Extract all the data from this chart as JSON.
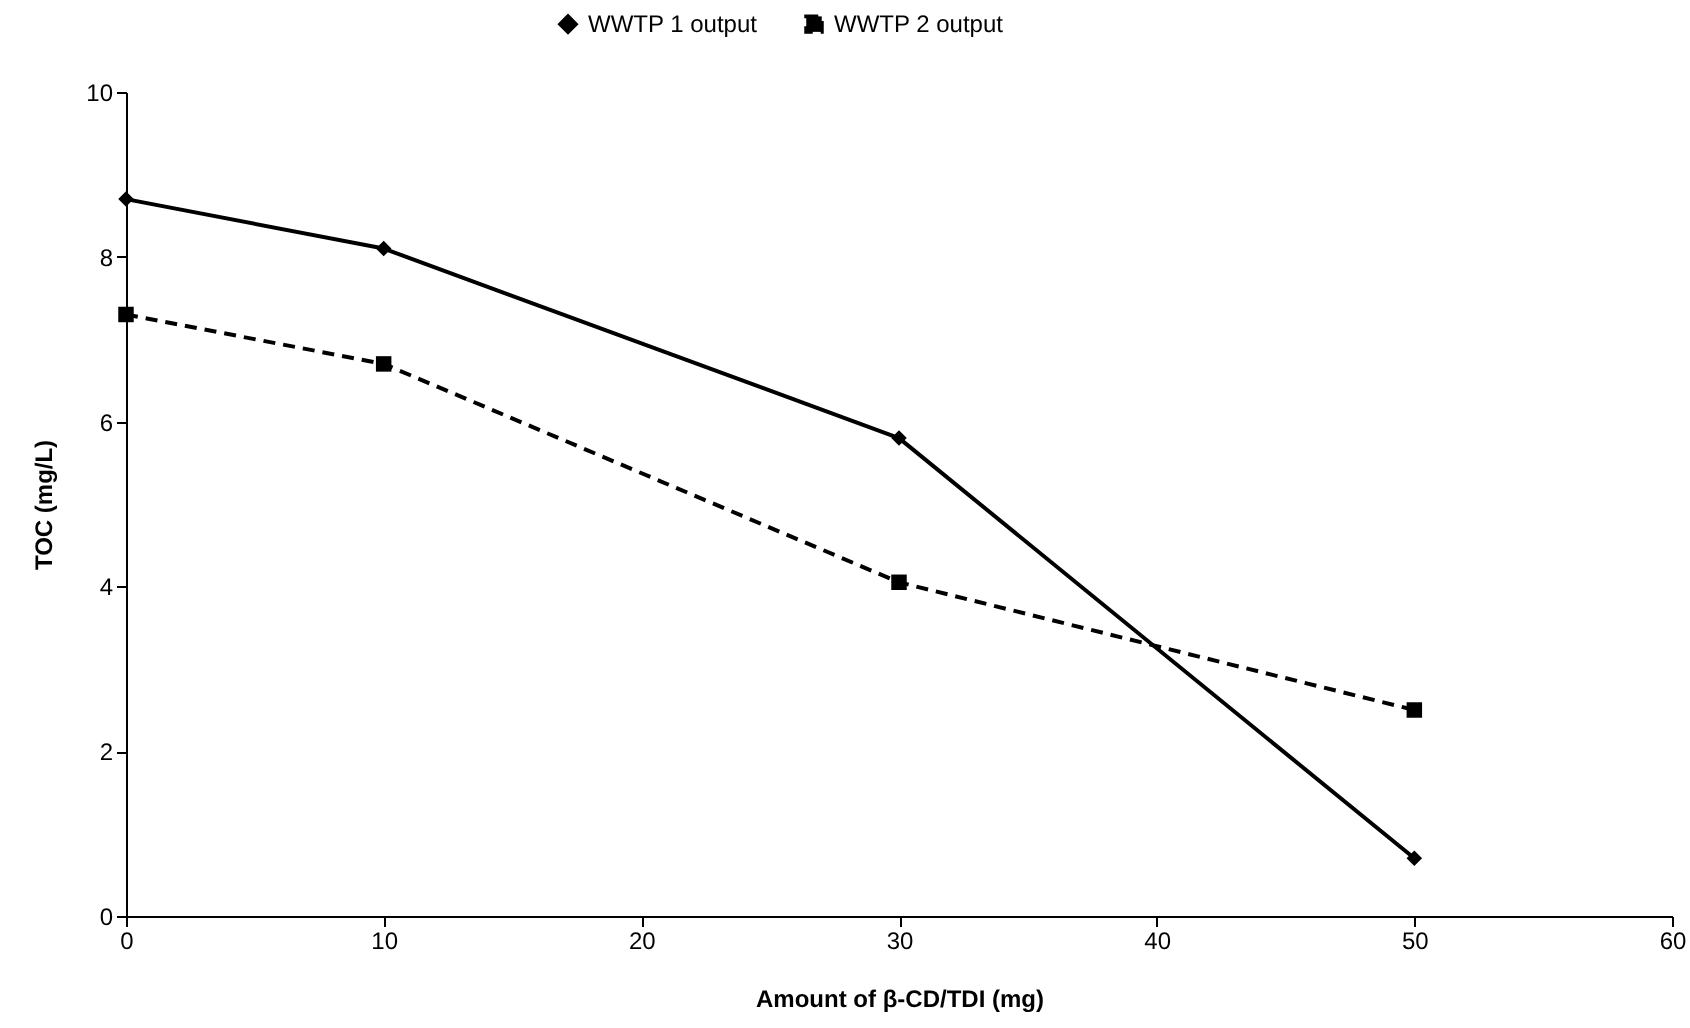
{
  "chart_data": {
    "type": "line",
    "xlabel": "Amount of β-CD/TDI (mg)",
    "ylabel": "TOC (mg/L)",
    "x": [
      0,
      10,
      30,
      50
    ],
    "series": [
      {
        "name": "WWTP 1 output",
        "color": "#000000",
        "values": [
          8.7,
          8.1,
          5.8,
          0.7
        ],
        "marker": "diamond",
        "line_style": "solid"
      },
      {
        "name": "WWTP 2 output",
        "color": "#000000",
        "values": [
          7.3,
          6.7,
          4.05,
          2.5
        ],
        "marker": "square",
        "line_style": "dashed"
      }
    ],
    "xlim": [
      0,
      60
    ],
    "xticks": [
      0,
      10,
      20,
      30,
      40,
      50,
      60
    ],
    "ylim": [
      0,
      10
    ],
    "yticks": [
      0,
      2,
      4,
      6,
      8,
      10
    ],
    "grid": false,
    "legend": "top"
  }
}
